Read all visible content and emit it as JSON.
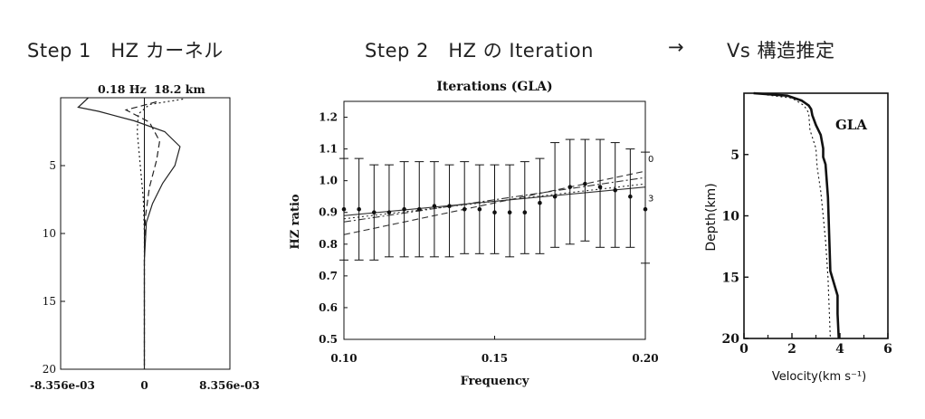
{
  "headings": {
    "step1": "Step 1　HZ カーネル",
    "step2": "Step 2　HZ の Iteration",
    "arrow": "→",
    "step3": "Vs 構造推定"
  },
  "chart_data": [
    {
      "type": "line",
      "title": "",
      "header_labels": [
        "0.18 Hz",
        "18.2 km"
      ],
      "xlabel": "",
      "ylabel": "",
      "x_tick_labels": [
        "-8.356e-03",
        "0",
        "8.356e-03"
      ],
      "y_ticks": [
        5,
        10,
        15,
        20
      ],
      "ylim": [
        0,
        20
      ],
      "xlim": [
        -0.008356,
        0.008356
      ],
      "y_inverted": true,
      "series": [
        {
          "style": "solid",
          "points": [
            [
              -0.0055,
              0
            ],
            [
              -0.0065,
              0.7
            ],
            [
              -0.0045,
              1.0
            ],
            [
              -0.001,
              1.7
            ],
            [
              0.002,
              2.5
            ],
            [
              0.0035,
              3.6
            ],
            [
              0.003,
              5.0
            ],
            [
              0.0018,
              6.3
            ],
            [
              0.0008,
              7.8
            ],
            [
              0.0002,
              9.2
            ],
            [
              0,
              12
            ],
            [
              0,
              20
            ]
          ]
        },
        {
          "style": "dashed",
          "points": [
            [
              0.0012,
              0.3
            ],
            [
              -0.0018,
              0.9
            ],
            [
              0.0005,
              1.8
            ],
            [
              0.0015,
              3.2
            ],
            [
              0.0012,
              4.6
            ],
            [
              0.0005,
              6.6
            ],
            [
              0.0001,
              8.8
            ],
            [
              0,
              12
            ],
            [
              0,
              20
            ]
          ]
        },
        {
          "style": "dotted",
          "points": [
            [
              0.0038,
              0.1
            ],
            [
              0.0005,
              0.5
            ],
            [
              -0.0006,
              1.2
            ],
            [
              -0.0007,
              2.5
            ],
            [
              -0.0004,
              5.0
            ],
            [
              -0.0001,
              7.5
            ],
            [
              0,
              10
            ],
            [
              0,
              20
            ]
          ]
        }
      ]
    },
    {
      "type": "scatter",
      "title": "Iterations (GLA)",
      "xlabel": "Frequency",
      "ylabel": "HZ ratio",
      "xlim": [
        0.1,
        0.2
      ],
      "ylim": [
        0.5,
        1.25
      ],
      "x_ticks": [
        0.1,
        0.15,
        0.2
      ],
      "y_ticks": [
        0.5,
        0.6,
        0.7,
        0.8,
        0.9,
        1.0,
        1.1,
        1.2
      ],
      "observed": {
        "x": [
          0.1,
          0.105,
          0.11,
          0.115,
          0.12,
          0.125,
          0.13,
          0.135,
          0.14,
          0.145,
          0.15,
          0.155,
          0.16,
          0.165,
          0.17,
          0.175,
          0.18,
          0.185,
          0.19,
          0.195,
          0.2
        ],
        "y": [
          0.91,
          0.91,
          0.9,
          0.9,
          0.91,
          0.91,
          0.92,
          0.92,
          0.91,
          0.91,
          0.9,
          0.9,
          0.9,
          0.93,
          0.95,
          0.98,
          0.99,
          0.98,
          0.97,
          0.95,
          0.91
        ],
        "err_low": [
          0.75,
          0.75,
          0.75,
          0.76,
          0.76,
          0.76,
          0.76,
          0.76,
          0.77,
          0.77,
          0.77,
          0.76,
          0.77,
          0.77,
          0.79,
          0.8,
          0.81,
          0.79,
          0.79,
          0.79,
          0.74
        ],
        "err_high": [
          1.07,
          1.07,
          1.05,
          1.05,
          1.06,
          1.06,
          1.06,
          1.05,
          1.06,
          1.05,
          1.05,
          1.05,
          1.06,
          1.07,
          1.12,
          1.13,
          1.13,
          1.13,
          1.12,
          1.1,
          1.09
        ]
      },
      "series": [
        {
          "name": "0",
          "style": "dashed",
          "x": [
            0.1,
            0.2
          ],
          "y": [
            0.83,
            1.03
          ]
        },
        {
          "name": "",
          "style": "dash-dot",
          "x": [
            0.1,
            0.2
          ],
          "y": [
            0.87,
            1.01
          ]
        },
        {
          "name": "",
          "style": "dotted",
          "x": [
            0.1,
            0.2
          ],
          "y": [
            0.88,
            0.99
          ]
        },
        {
          "name": "3",
          "style": "solid",
          "x": [
            0.1,
            0.2
          ],
          "y": [
            0.89,
            0.98
          ]
        }
      ]
    },
    {
      "type": "line",
      "title": "",
      "annotation": "GLA",
      "xlabel": "Velocity(km s⁻¹)",
      "ylabel": "Depth(km)",
      "xlim": [
        0,
        6
      ],
      "ylim": [
        0,
        20
      ],
      "y_inverted": true,
      "x_ticks": [
        0,
        2,
        4,
        6
      ],
      "y_ticks": [
        5,
        10,
        15,
        20
      ],
      "series": [
        {
          "style": "thick-solid",
          "x": [
            0.4,
            1.8,
            2.4,
            2.7,
            2.8,
            2.85,
            3.0,
            3.2,
            3.3,
            3.3,
            3.4,
            3.5,
            3.55,
            3.6,
            3.9,
            3.9,
            3.95
          ],
          "y": [
            0,
            0.2,
            0.6,
            1.0,
            1.3,
            1.8,
            2.6,
            3.4,
            4.5,
            5.2,
            5.8,
            8.5,
            11.5,
            14.5,
            16.5,
            18.0,
            20
          ]
        },
        {
          "style": "dotted",
          "x": [
            0.4,
            2.0,
            2.5,
            2.7,
            2.75,
            3.0,
            3.05,
            3.2,
            3.3,
            3.4,
            3.5,
            3.6
          ],
          "y": [
            0,
            0.4,
            1.0,
            1.6,
            3.0,
            4.5,
            6.0,
            8.0,
            10.0,
            12.0,
            15.0,
            20
          ]
        }
      ]
    }
  ]
}
